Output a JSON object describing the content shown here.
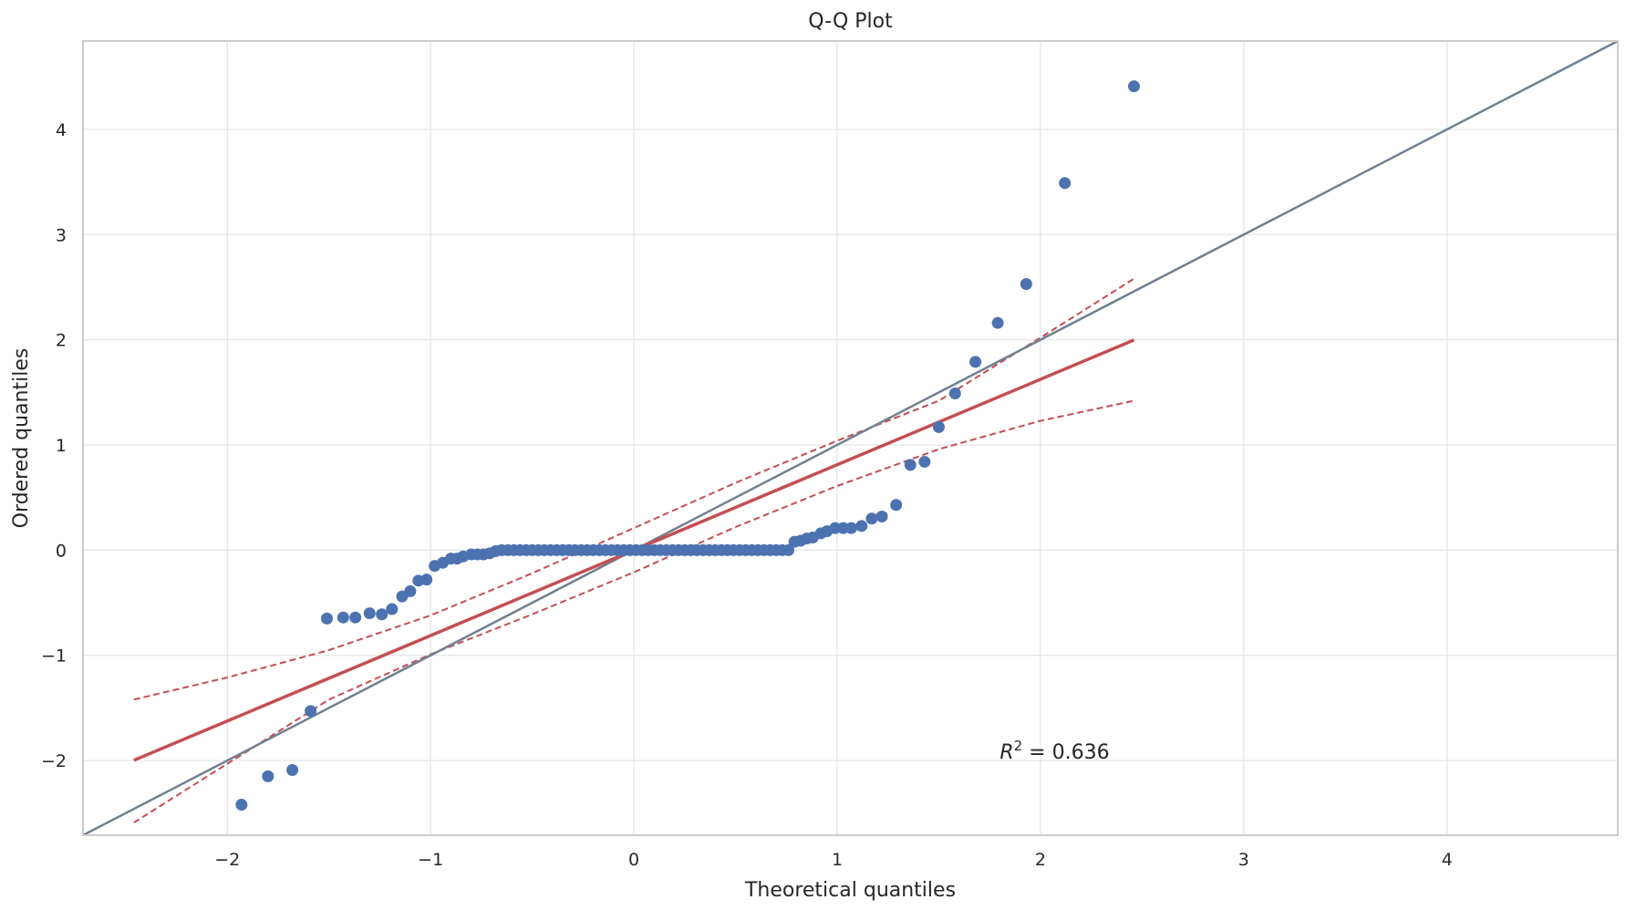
{
  "chart_data": {
    "type": "scatter",
    "title": "Q-Q Plot",
    "xlabel": "Theoretical quantiles",
    "ylabel": "Ordered quantiles",
    "xlim": [
      -2.71,
      4.84
    ],
    "ylim": [
      -2.71,
      4.84
    ],
    "xticks": [
      -2,
      -1,
      0,
      1,
      2,
      3,
      4
    ],
    "yticks": [
      -2,
      -1,
      0,
      1,
      2,
      3,
      4
    ],
    "xtick_labels": [
      "−2",
      "−1",
      "0",
      "1",
      "2",
      "3",
      "4"
    ],
    "ytick_labels": [
      "−2",
      "−1",
      "0",
      "1",
      "2",
      "3",
      "4"
    ],
    "grid": true,
    "annotation": {
      "prefix": "R",
      "sup": "2",
      "suffix": " = 0.636",
      "x": 1.8,
      "y": -1.98
    },
    "points": [
      [
        -1.93,
        -2.42
      ],
      [
        -1.8,
        -2.15
      ],
      [
        -1.68,
        -2.09
      ],
      [
        -1.59,
        -1.53
      ],
      [
        -1.51,
        -0.65
      ],
      [
        -1.43,
        -0.64
      ],
      [
        -1.37,
        -0.64
      ],
      [
        -1.3,
        -0.6
      ],
      [
        -1.24,
        -0.61
      ],
      [
        -1.19,
        -0.56
      ],
      [
        -1.14,
        -0.44
      ],
      [
        -1.1,
        -0.39
      ],
      [
        -1.06,
        -0.29
      ],
      [
        -1.02,
        -0.28
      ],
      [
        -0.98,
        -0.15
      ],
      [
        -0.94,
        -0.12
      ],
      [
        -0.9,
        -0.08
      ],
      [
        -0.87,
        -0.08
      ],
      [
        -0.84,
        -0.06
      ],
      [
        -0.8,
        -0.04
      ],
      [
        -0.77,
        -0.04
      ],
      [
        -0.74,
        -0.04
      ],
      [
        -0.71,
        -0.03
      ],
      [
        -0.68,
        -0.01
      ],
      [
        -0.65,
        0.0
      ],
      [
        -0.62,
        0.0
      ],
      [
        -0.59,
        0.0
      ],
      [
        -0.56,
        0.0
      ],
      [
        -0.53,
        0.0
      ],
      [
        -0.5,
        0.0
      ],
      [
        -0.47,
        0.0
      ],
      [
        -0.44,
        0.0
      ],
      [
        -0.41,
        0.0
      ],
      [
        -0.38,
        0.0
      ],
      [
        -0.35,
        0.0
      ],
      [
        -0.32,
        0.0
      ],
      [
        -0.29,
        0.0
      ],
      [
        -0.26,
        0.0
      ],
      [
        -0.23,
        0.0
      ],
      [
        -0.2,
        0.0
      ],
      [
        -0.17,
        0.0
      ],
      [
        -0.14,
        0.0
      ],
      [
        -0.11,
        0.0
      ],
      [
        -0.08,
        0.0
      ],
      [
        -0.05,
        0.0
      ],
      [
        -0.02,
        0.0
      ],
      [
        0.01,
        0.0
      ],
      [
        0.04,
        0.0
      ],
      [
        0.07,
        0.0
      ],
      [
        0.1,
        0.0
      ],
      [
        0.13,
        0.0
      ],
      [
        0.16,
        0.0
      ],
      [
        0.19,
        0.0
      ],
      [
        0.22,
        0.0
      ],
      [
        0.25,
        0.0
      ],
      [
        0.28,
        0.0
      ],
      [
        0.31,
        0.0
      ],
      [
        0.34,
        0.0
      ],
      [
        0.37,
        0.0
      ],
      [
        0.4,
        0.0
      ],
      [
        0.43,
        0.0
      ],
      [
        0.46,
        0.0
      ],
      [
        0.49,
        0.0
      ],
      [
        0.52,
        0.0
      ],
      [
        0.55,
        0.0
      ],
      [
        0.58,
        0.0
      ],
      [
        0.61,
        0.0
      ],
      [
        0.64,
        0.0
      ],
      [
        0.67,
        0.0
      ],
      [
        0.7,
        0.0
      ],
      [
        0.73,
        0.0
      ],
      [
        0.76,
        0.0
      ],
      [
        0.79,
        0.08
      ],
      [
        0.82,
        0.09
      ],
      [
        0.85,
        0.11
      ],
      [
        0.88,
        0.12
      ],
      [
        0.92,
        0.16
      ],
      [
        0.95,
        0.18
      ],
      [
        0.99,
        0.21
      ],
      [
        1.03,
        0.21
      ],
      [
        1.07,
        0.21
      ],
      [
        1.12,
        0.23
      ],
      [
        1.17,
        0.3
      ],
      [
        1.22,
        0.32
      ],
      [
        1.29,
        0.43
      ],
      [
        1.36,
        0.81
      ],
      [
        1.43,
        0.84
      ],
      [
        1.5,
        1.17
      ],
      [
        1.58,
        1.49
      ],
      [
        1.68,
        1.79
      ],
      [
        1.79,
        2.16
      ],
      [
        1.93,
        2.53
      ],
      [
        2.12,
        3.49
      ],
      [
        2.46,
        4.41
      ]
    ],
    "identity_line": {
      "color": "#708090"
    },
    "fit_line": {
      "slope": 0.812,
      "intercept": 0.0,
      "x": [
        -2.46,
        2.46
      ],
      "color": "#c44e52"
    },
    "confidence_band": {
      "x": [
        -2.46,
        -2.0,
        -1.5,
        -1.0,
        -0.5,
        0.0,
        0.5,
        1.0,
        1.5,
        2.0,
        2.46
      ],
      "upper": [
        -1.42,
        -1.21,
        -0.95,
        -0.62,
        -0.22,
        0.21,
        0.64,
        1.04,
        1.42,
        2.02,
        2.58
      ],
      "lower": [
        -2.59,
        -2.03,
        -1.42,
        -0.99,
        -0.61,
        -0.21,
        0.22,
        0.61,
        0.96,
        1.23,
        1.42
      ],
      "color": "#c44e52"
    },
    "point_color": "#4c72b0"
  }
}
